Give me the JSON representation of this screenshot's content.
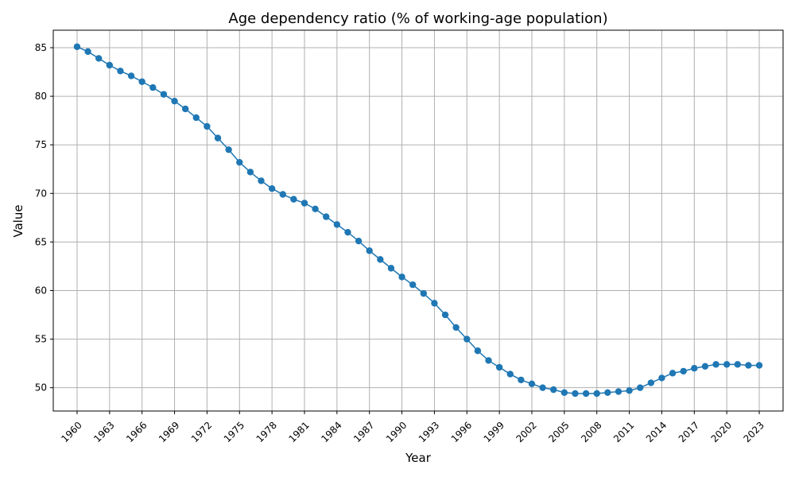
{
  "chart_data": {
    "type": "line",
    "title": "Age dependency ratio (% of working-age population)",
    "xlabel": "Year",
    "ylabel": "Value",
    "grid": true,
    "marker": "circle",
    "color": "#1f77b4",
    "xlim": [
      1957.8,
      2025.2
    ],
    "ylim": [
      47.6,
      86.8
    ],
    "xticks": [
      1960,
      1963,
      1966,
      1969,
      1972,
      1975,
      1978,
      1981,
      1984,
      1987,
      1990,
      1993,
      1996,
      1999,
      2002,
      2005,
      2008,
      2011,
      2014,
      2017,
      2020,
      2023
    ],
    "yticks": [
      50,
      55,
      60,
      65,
      70,
      75,
      80,
      85
    ],
    "x": [
      1960,
      1961,
      1962,
      1963,
      1964,
      1965,
      1966,
      1967,
      1968,
      1969,
      1970,
      1971,
      1972,
      1973,
      1974,
      1975,
      1976,
      1977,
      1978,
      1979,
      1980,
      1981,
      1982,
      1983,
      1984,
      1985,
      1986,
      1987,
      1988,
      1989,
      1990,
      1991,
      1992,
      1993,
      1994,
      1995,
      1996,
      1997,
      1998,
      1999,
      2000,
      2001,
      2002,
      2003,
      2004,
      2005,
      2006,
      2007,
      2008,
      2009,
      2010,
      2011,
      2012,
      2013,
      2014,
      2015,
      2016,
      2017,
      2018,
      2019,
      2020,
      2021,
      2022,
      2023
    ],
    "series": [
      {
        "values": [
          85.1,
          84.6,
          83.9,
          83.2,
          82.6,
          82.1,
          81.5,
          80.9,
          80.2,
          79.5,
          78.7,
          77.8,
          76.9,
          75.7,
          74.5,
          73.2,
          72.2,
          71.3,
          70.5,
          69.9,
          69.4,
          69.0,
          68.4,
          67.6,
          66.8,
          66.0,
          65.1,
          64.1,
          63.2,
          62.3,
          61.4,
          60.6,
          59.7,
          58.7,
          57.5,
          56.2,
          55.0,
          53.8,
          52.8,
          52.1,
          51.4,
          50.8,
          50.4,
          50.0,
          49.8,
          49.5,
          49.4,
          49.4,
          49.4,
          49.5,
          49.6,
          49.7,
          50.0,
          50.5,
          51.0,
          51.5,
          51.7,
          52.0,
          52.2,
          52.4,
          52.4,
          52.4,
          52.3,
          52.3
        ]
      }
    ]
  }
}
